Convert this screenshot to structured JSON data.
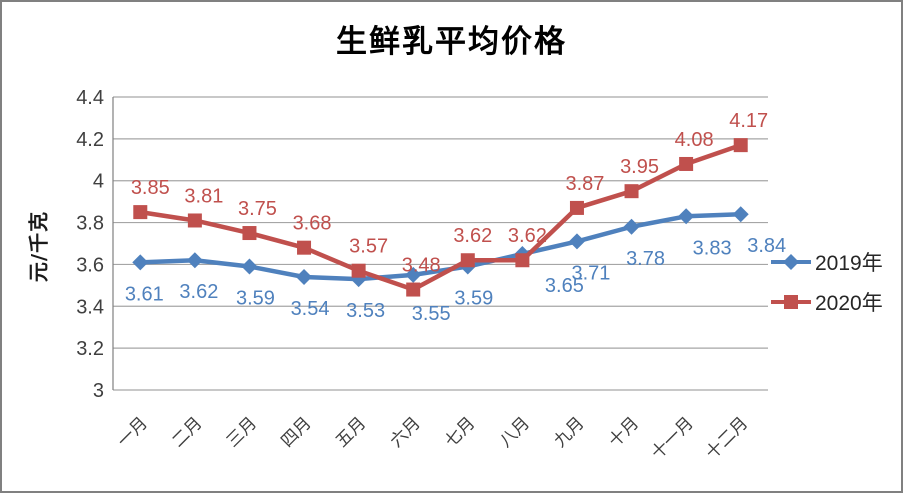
{
  "window": {
    "background": "#FFFFFF",
    "border_color": "#808080"
  },
  "chart_data": {
    "type": "line",
    "title": "生鲜乳平均价格",
    "ylabel": "元/千克",
    "xlabel": "",
    "categories": [
      "一月",
      "二月",
      "三月",
      "四月",
      "五月",
      "六月",
      "七月",
      "八月",
      "九月",
      "十月",
      "十一月",
      "十二月"
    ],
    "series": [
      {
        "name": "2019年",
        "color": "#4F81BD",
        "marker": "diamond",
        "label_position": "below",
        "values": [
          3.61,
          3.62,
          3.59,
          3.54,
          3.53,
          3.55,
          3.59,
          3.65,
          3.71,
          3.78,
          3.83,
          3.84
        ]
      },
      {
        "name": "2020年",
        "color": "#C0504D",
        "marker": "square",
        "label_position": "above",
        "values": [
          3.85,
          3.81,
          3.75,
          3.68,
          3.57,
          3.48,
          3.62,
          3.62,
          3.87,
          3.95,
          4.08,
          4.17
        ]
      }
    ],
    "ylim": [
      3,
      4.4
    ],
    "ytick_step": 0.2,
    "yticks": [
      "3",
      "3.2",
      "3.4",
      "3.6",
      "3.8",
      "4",
      "4.2",
      "4.4"
    ],
    "grid": "horizontal",
    "gridline_color": "#A6A6A6",
    "axis_line_color": "#808080",
    "tick_label_color": "#3F3F3F",
    "data_labels": true,
    "legend_position": "right",
    "x_label_rotation_deg": 45
  }
}
